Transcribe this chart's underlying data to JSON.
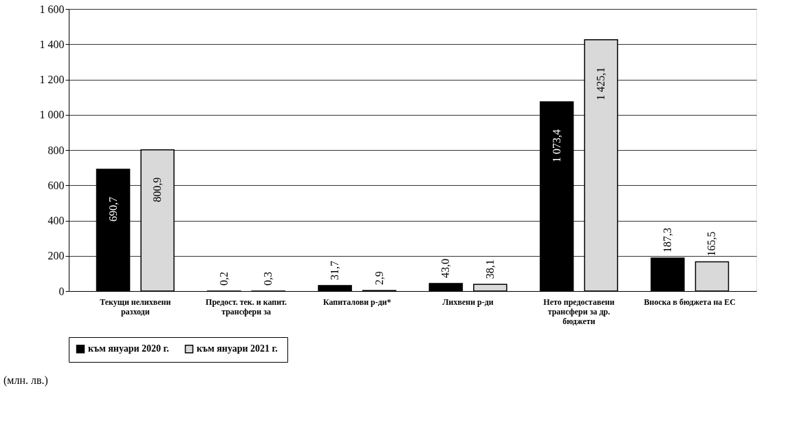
{
  "chart_data": {
    "type": "bar",
    "categories": [
      "Текущи нелихвени разходи",
      "Предост. тек. и капит. трансфери за",
      "Капиталови р-ди*",
      "Лихвени р-ди",
      "Нето предоставени трансфери за др. бюджети",
      "Вноска в бюджета на ЕС"
    ],
    "series": [
      {
        "name": "към януари 2020 г.",
        "color": "#000000",
        "values": [
          690.7,
          0.2,
          31.7,
          43.0,
          1073.4,
          187.3
        ],
        "value_labels": [
          "690,7",
          "0,2",
          "31,7",
          "43,0",
          "1 073,4",
          "187,3"
        ]
      },
      {
        "name": "към януари  2021 г.",
        "color": "#d9d9d9",
        "values": [
          800.9,
          0.3,
          2.9,
          38.1,
          1425.1,
          165.5
        ],
        "value_labels": [
          "800,9",
          "0,3",
          "2,9",
          "38,1",
          "1 425,1",
          "165,5"
        ]
      }
    ],
    "ylim": [
      0,
      1600
    ],
    "yticks": [
      {
        "value": 0,
        "label": "0"
      },
      {
        "value": 200,
        "label": "200"
      },
      {
        "value": 400,
        "label": "400"
      },
      {
        "value": 600,
        "label": "600"
      },
      {
        "value": 800,
        "label": "800"
      },
      {
        "value": 1000,
        "label": "1 000"
      },
      {
        "value": 1200,
        "label": "1 200"
      },
      {
        "value": 1400,
        "label": "1 400"
      },
      {
        "value": 1600,
        "label": "1 600"
      }
    ],
    "grid": "y",
    "legend": "bottom",
    "annotations": [
      "(млн. лв.)"
    ]
  }
}
